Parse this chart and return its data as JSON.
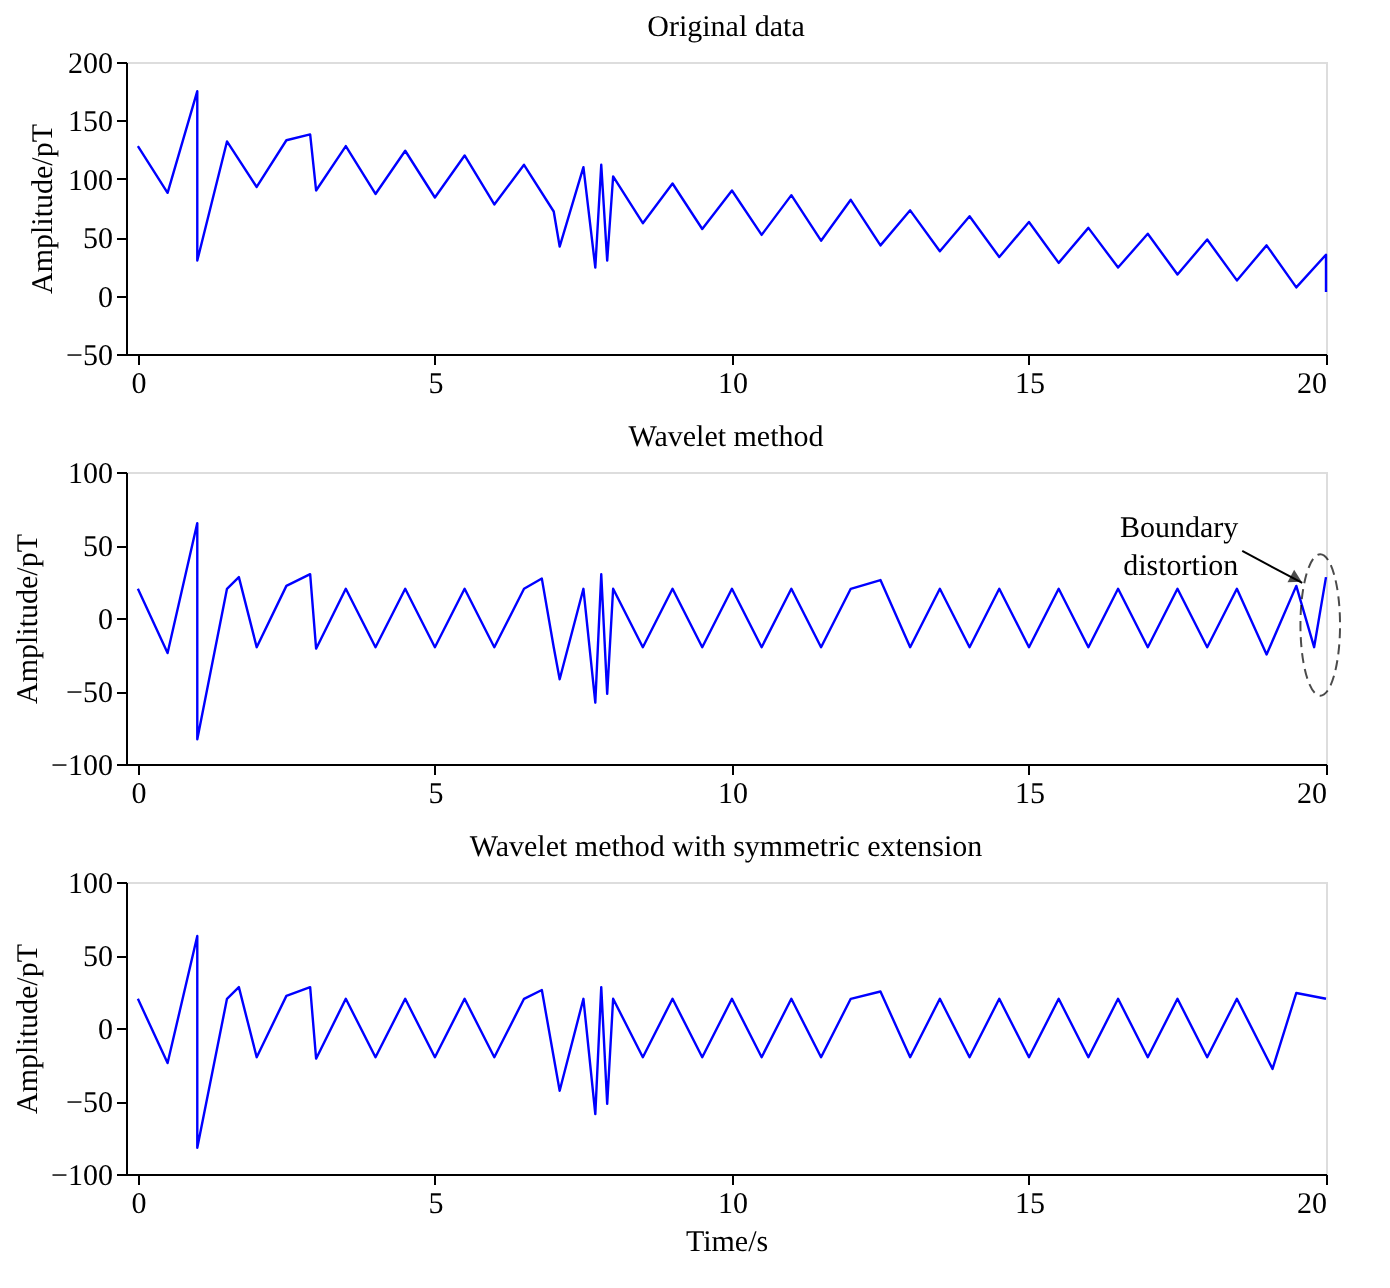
{
  "chart_data": [
    {
      "type": "line",
      "title": "Original data",
      "ylabel": "Amplitude/pT",
      "xlim": [
        -0.2,
        20
      ],
      "xticks": [
        0,
        5,
        10,
        15,
        20
      ],
      "ylim": [
        -50,
        200
      ],
      "yticks": [
        -50,
        0,
        50,
        100,
        150,
        200
      ],
      "grid": false,
      "series": [
        {
          "color": "#0000ff",
          "x": [
            0,
            0.5,
            1.0,
            1.0,
            1.5,
            2.0,
            2.5,
            2.9,
            3.0,
            3.5,
            4.0,
            4.5,
            5.0,
            5.5,
            6.0,
            6.5,
            7.0,
            7.1,
            7.5,
            7.7,
            7.8,
            7.9,
            8.0,
            8.5,
            9.0,
            9.5,
            10.0,
            10.5,
            11.0,
            11.5,
            12.0,
            12.5,
            13.0,
            13.5,
            14.0,
            14.5,
            15.0,
            15.5,
            16.0,
            16.5,
            17.0,
            17.5,
            18.0,
            18.5,
            19.0,
            19.5,
            20.0,
            20.0
          ],
          "values": [
            128,
            88,
            175,
            30,
            132,
            93,
            133,
            138,
            90,
            128,
            87,
            124,
            84,
            120,
            78,
            112,
            72,
            42,
            110,
            24,
            112,
            30,
            102,
            62,
            96,
            57,
            90,
            52,
            86,
            47,
            82,
            43,
            73,
            38,
            68,
            33,
            63,
            28,
            58,
            24,
            53,
            18,
            48,
            13,
            43,
            7,
            35,
            3
          ]
        }
      ]
    },
    {
      "type": "line",
      "title": "Wavelet method",
      "ylabel": "Amplitude/pT",
      "xlim": [
        -0.2,
        20
      ],
      "xticks": [
        0,
        5,
        10,
        15,
        20
      ],
      "ylim": [
        -100,
        100
      ],
      "yticks": [
        -100,
        -50,
        0,
        50,
        100
      ],
      "grid": false,
      "annotations": [
        {
          "text": "Boundary distortion",
          "x": 19.6,
          "y": 24
        }
      ],
      "series": [
        {
          "color": "#0000ff",
          "x": [
            0,
            0.5,
            1.0,
            1.0,
            1.5,
            1.7,
            2.0,
            2.5,
            2.9,
            3.0,
            3.5,
            4.0,
            4.5,
            5.0,
            5.5,
            6.0,
            6.5,
            6.8,
            7.0,
            7.1,
            7.5,
            7.7,
            7.8,
            7.9,
            8.0,
            8.5,
            9.0,
            9.5,
            10.0,
            10.5,
            11.0,
            11.5,
            12.0,
            12.5,
            13.0,
            13.5,
            14.0,
            14.5,
            15.0,
            15.5,
            16.0,
            16.5,
            17.0,
            17.5,
            18.0,
            18.5,
            19.0,
            19.5,
            19.8,
            20.0
          ],
          "values": [
            20,
            -24,
            65,
            -83,
            20,
            28,
            -20,
            22,
            30,
            -21,
            20,
            -20,
            20,
            -20,
            20,
            -20,
            20,
            27,
            -20,
            -42,
            20,
            -58,
            30,
            -52,
            20,
            -20,
            20,
            -20,
            20,
            -20,
            20,
            -20,
            20,
            26,
            -20,
            20,
            -20,
            20,
            -20,
            20,
            -20,
            20,
            -20,
            20,
            -20,
            20,
            -25,
            22,
            -20,
            28
          ]
        }
      ]
    },
    {
      "type": "line",
      "title": "Wavelet method with symmetric extension",
      "xlabel": "Time/s",
      "ylabel": "Amplitude/pT",
      "xlim": [
        -0.2,
        20
      ],
      "xticks": [
        0,
        5,
        10,
        15,
        20
      ],
      "ylim": [
        -100,
        100
      ],
      "yticks": [
        -100,
        -50,
        0,
        50,
        100
      ],
      "grid": false,
      "series": [
        {
          "color": "#0000ff",
          "x": [
            0,
            0.5,
            1.0,
            1.0,
            1.5,
            1.7,
            2.0,
            2.5,
            2.9,
            3.0,
            3.5,
            4.0,
            4.5,
            5.0,
            5.5,
            6.0,
            6.5,
            6.8,
            7.0,
            7.1,
            7.5,
            7.7,
            7.8,
            7.9,
            8.0,
            8.5,
            9.0,
            9.5,
            10.0,
            10.5,
            11.0,
            11.5,
            12.0,
            12.5,
            13.0,
            13.5,
            14.0,
            14.5,
            15.0,
            15.5,
            16.0,
            16.5,
            17.0,
            17.5,
            18.0,
            18.5,
            19.0,
            19.1,
            19.5,
            20.0
          ],
          "values": [
            20,
            -24,
            63,
            -82,
            20,
            28,
            -20,
            22,
            28,
            -21,
            20,
            -20,
            20,
            -20,
            20,
            -20,
            20,
            26,
            -20,
            -43,
            20,
            -59,
            28,
            -52,
            20,
            -20,
            20,
            -20,
            20,
            -20,
            20,
            -20,
            20,
            25,
            -20,
            20,
            -20,
            20,
            -20,
            20,
            -20,
            20,
            -20,
            20,
            -20,
            20,
            -20,
            -28,
            24,
            20
          ]
        }
      ]
    }
  ]
}
